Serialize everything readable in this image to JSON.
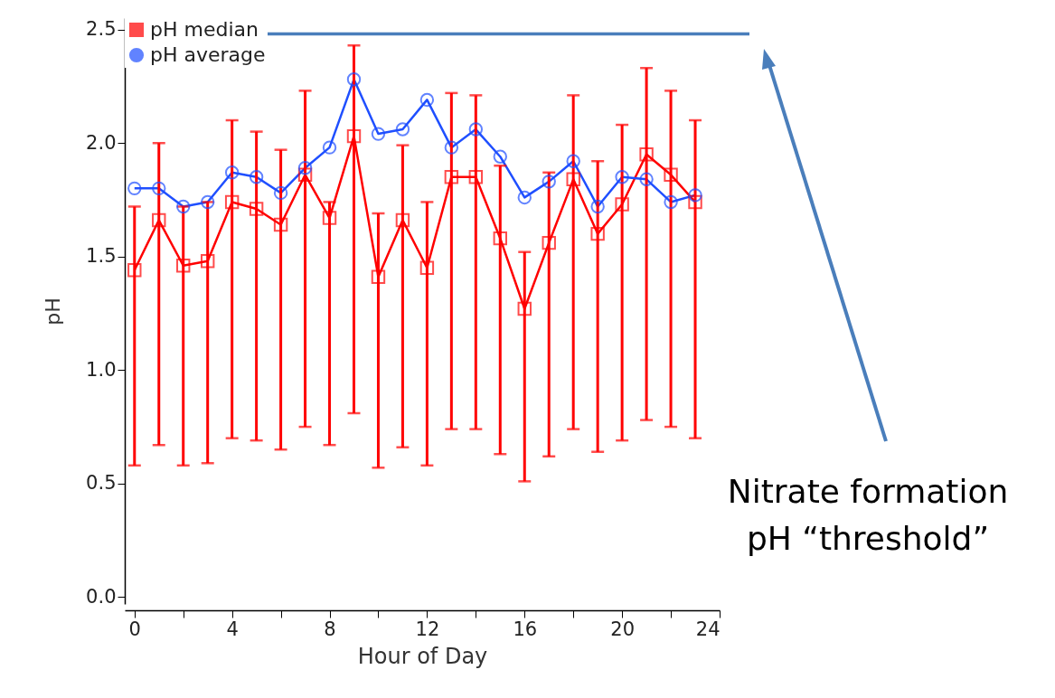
{
  "chart_data": {
    "type": "line",
    "xlabel": "Hour of Day",
    "ylabel": "pH",
    "x": [
      0,
      1,
      2,
      3,
      4,
      5,
      6,
      7,
      8,
      9,
      10,
      11,
      12,
      13,
      14,
      15,
      16,
      17,
      18,
      19,
      20,
      21,
      22,
      23
    ],
    "series": [
      {
        "name": "pH median",
        "color": "#ff0000",
        "marker": "square",
        "values": [
          1.44,
          1.66,
          1.46,
          1.48,
          1.74,
          1.71,
          1.64,
          1.86,
          1.67,
          2.03,
          1.41,
          1.66,
          1.45,
          1.85,
          1.85,
          1.58,
          1.27,
          1.56,
          1.84,
          1.6,
          1.73,
          1.95,
          1.86,
          1.74
        ],
        "errors": [
          [
            0.58,
            1.72
          ],
          [
            0.67,
            2.0
          ],
          [
            0.58,
            1.72
          ],
          [
            0.59,
            1.74
          ],
          [
            0.7,
            2.1
          ],
          [
            0.69,
            2.05
          ],
          [
            0.65,
            1.97
          ],
          [
            0.75,
            2.23
          ],
          [
            0.67,
            1.74
          ],
          [
            0.81,
            2.43
          ],
          [
            0.57,
            1.69
          ],
          [
            0.66,
            1.99
          ],
          [
            0.58,
            1.74
          ],
          [
            0.74,
            2.22
          ],
          [
            0.74,
            2.21
          ],
          [
            0.63,
            1.9
          ],
          [
            0.51,
            1.52
          ],
          [
            0.62,
            1.87
          ],
          [
            0.74,
            2.21
          ],
          [
            0.64,
            1.92
          ],
          [
            0.69,
            2.08
          ],
          [
            0.78,
            2.33
          ],
          [
            0.75,
            2.23
          ],
          [
            0.7,
            2.1
          ]
        ]
      },
      {
        "name": "pH average",
        "color": "#1f4fff",
        "marker": "circle",
        "values": [
          1.8,
          1.8,
          1.72,
          1.74,
          1.87,
          1.85,
          1.78,
          1.89,
          1.98,
          2.28,
          2.04,
          2.06,
          2.19,
          1.98,
          2.06,
          1.94,
          1.76,
          1.83,
          1.92,
          1.72,
          1.85,
          1.84,
          1.74,
          1.77
        ]
      }
    ],
    "xlim": [
      -0.4,
      24
    ],
    "xticks": [
      0,
      {
        "value": 2,
        "label": null
      },
      4,
      {
        "value": 6,
        "label": null
      },
      8,
      {
        "value": 10,
        "label": null
      },
      12,
      {
        "value": 14,
        "label": null
      },
      16,
      {
        "value": 18,
        "label": null
      },
      20,
      {
        "value": 22,
        "label": null
      },
      24
    ],
    "ylim": [
      -0.03,
      2.55
    ],
    "yticks": [
      {
        "value": 0,
        "label": "0.0"
      },
      {
        "value": 0.5,
        "label": "0.5"
      },
      {
        "value": 1,
        "label": "1.0"
      },
      {
        "value": 1.5,
        "label": "1.5"
      },
      {
        "value": 2,
        "label": "2.0"
      },
      {
        "value": 2.5,
        "label": "2.5"
      }
    ],
    "ref_lines": [
      {
        "axis": "y",
        "value": 2.48,
        "color": "#4a7ebb"
      }
    ],
    "annotations": [
      "Nitrate formation\npH “threshold”"
    ],
    "grid": false,
    "legend": "top left",
    "line_style": "solid"
  }
}
